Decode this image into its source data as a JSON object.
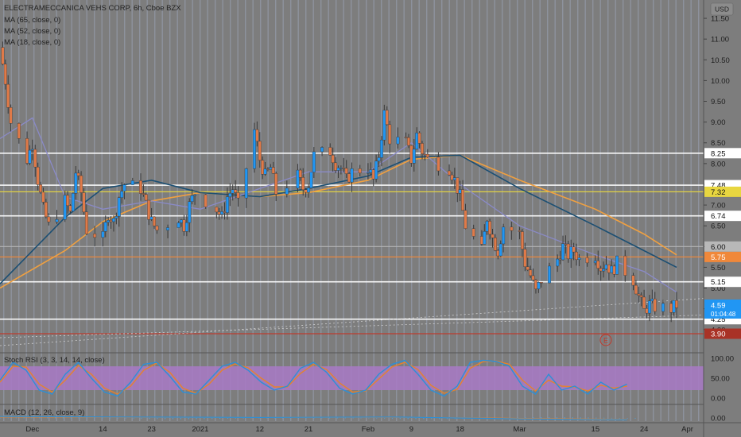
{
  "header": {
    "title": "ELECTRAMECCANICA VEHS CORP, 6h, Cboe BZX",
    "currency": "USD",
    "indicators": [
      "MA (65, close, 0)",
      "MA (52, close, 0)",
      "MA (18, close, 0)"
    ]
  },
  "rsi_panel": {
    "label": "Stoch RSI (3, 3, 14, 14, close)"
  },
  "macd_panel": {
    "label": "MACD (12, 26, close, 9)"
  },
  "earnings_marker": "E",
  "countdown": "01:04:48",
  "colors": {
    "up": "#2196f3",
    "down": "#e07a48",
    "ma65": "#f0a040",
    "ma52": "#1c4f73",
    "ma18": "#8a8ac8",
    "rsi_k": "#2d8fd6",
    "rsi_d": "#e5822d",
    "rsi_band": "#a879c6",
    "price_tag": "#2196f3"
  },
  "chart_data": {
    "type": "candlestick",
    "y_axis": {
      "min": 3.9,
      "max": 11.75,
      "ticks": [
        "11.50",
        "11.00",
        "10.50",
        "10.00",
        "9.50",
        "9.00",
        "8.50",
        "8.00",
        "7.50",
        "7.00",
        "6.50",
        "6.00",
        "5.50",
        "5.00",
        "4.50",
        "4.00"
      ]
    },
    "x_axis": {
      "labels": [
        {
          "label": "Dec",
          "date": "2020-12-01"
        },
        {
          "label": "14",
          "date": "2020-12-14"
        },
        {
          "label": "23",
          "date": "2020-12-23"
        },
        {
          "label": "2021",
          "date": "2021-01-01"
        },
        {
          "label": "12",
          "date": "2021-01-12"
        },
        {
          "label": "21",
          "date": "2021-01-21"
        },
        {
          "label": "Feb",
          "date": "2021-02-01"
        },
        {
          "label": "9",
          "date": "2021-02-09"
        },
        {
          "label": "18",
          "date": "2021-02-18"
        },
        {
          "label": "Mar",
          "date": "2021-03-01"
        },
        {
          "label": "15",
          "date": "2021-03-15"
        },
        {
          "label": "24",
          "date": "2021-03-24"
        },
        {
          "label": "Apr",
          "date": "2021-04-01"
        }
      ]
    },
    "horizontal_levels": [
      {
        "value": "8.25",
        "price": 8.25,
        "style": "white"
      },
      {
        "value": "7.48",
        "price": 7.48,
        "style": "white"
      },
      {
        "value": "7.32",
        "price": 7.32,
        "style": "yellow"
      },
      {
        "value": "6.74",
        "price": 6.74,
        "style": "white"
      },
      {
        "value": "6.00",
        "price": 6.0,
        "style": "grey"
      },
      {
        "value": "5.75",
        "price": 5.75,
        "style": "orange"
      },
      {
        "value": "5.15",
        "price": 5.15,
        "style": "white"
      },
      {
        "value": "4.25",
        "price": 4.25,
        "style": "white"
      },
      {
        "value": "3.90",
        "price": 3.9,
        "style": "red"
      }
    ],
    "last_price": {
      "value": "4.59",
      "price": 4.59
    },
    "close_path": [
      [
        "2020-11-25",
        10.8
      ],
      [
        "2020-11-26",
        10.0
      ],
      [
        "2020-11-27",
        9.0
      ],
      [
        "2020-11-30",
        8.1
      ],
      [
        "2020-12-01",
        8.5
      ],
      [
        "2020-12-02",
        7.6
      ],
      [
        "2020-12-03",
        6.9
      ],
      [
        "2020-12-04",
        6.5
      ],
      [
        "2020-12-07",
        7.1
      ],
      [
        "2020-12-08",
        6.8
      ],
      [
        "2020-12-09",
        7.8
      ],
      [
        "2020-12-10",
        7.3
      ],
      [
        "2020-12-11",
        6.4
      ],
      [
        "2020-12-14",
        6.2
      ],
      [
        "2020-12-15",
        6.8
      ],
      [
        "2020-12-16",
        6.6
      ],
      [
        "2020-12-17",
        7.2
      ],
      [
        "2020-12-18",
        7.5
      ],
      [
        "2020-12-21",
        7.4
      ],
      [
        "2020-12-22",
        7.0
      ],
      [
        "2020-12-23",
        6.6
      ],
      [
        "2020-12-24",
        6.4
      ],
      [
        "2020-12-28",
        6.7
      ],
      [
        "2020-12-29",
        6.5
      ],
      [
        "2020-12-30",
        7.0
      ],
      [
        "2020-12-31",
        7.3
      ],
      [
        "2021-01-04",
        6.9
      ],
      [
        "2021-01-05",
        6.7
      ],
      [
        "2021-01-06",
        7.2
      ],
      [
        "2021-01-07",
        7.4
      ],
      [
        "2021-01-08",
        7.0
      ],
      [
        "2021-01-11",
        8.8
      ],
      [
        "2021-01-12",
        8.1
      ],
      [
        "2021-01-13",
        7.7
      ],
      [
        "2021-01-14",
        7.9
      ],
      [
        "2021-01-15",
        7.3
      ],
      [
        "2021-01-19",
        7.7
      ],
      [
        "2021-01-20",
        7.4
      ],
      [
        "2021-01-21",
        7.5
      ],
      [
        "2021-01-22",
        8.2
      ],
      [
        "2021-01-25",
        8.3
      ],
      [
        "2021-01-26",
        8.0
      ],
      [
        "2021-01-27",
        7.9
      ],
      [
        "2021-01-28",
        7.6
      ],
      [
        "2021-01-29",
        7.8
      ],
      [
        "2021-02-01",
        7.9
      ],
      [
        "2021-02-02",
        7.6
      ],
      [
        "2021-02-03",
        8.2
      ],
      [
        "2021-02-04",
        9.2
      ],
      [
        "2021-02-05",
        8.6
      ],
      [
        "2021-02-08",
        8.5
      ],
      [
        "2021-02-09",
        8.1
      ],
      [
        "2021-02-10",
        8.7
      ],
      [
        "2021-02-11",
        8.3
      ],
      [
        "2021-02-12",
        8.1
      ],
      [
        "2021-02-16",
        7.9
      ],
      [
        "2021-02-17",
        7.6
      ],
      [
        "2021-02-18",
        7.2
      ],
      [
        "2021-02-19",
        6.5
      ],
      [
        "2021-02-22",
        5.9
      ],
      [
        "2021-02-23",
        6.7
      ],
      [
        "2021-02-24",
        6.2
      ],
      [
        "2021-02-25",
        5.9
      ],
      [
        "2021-02-26",
        6.5
      ],
      [
        "2021-03-01",
        6.3
      ],
      [
        "2021-03-02",
        5.6
      ],
      [
        "2021-03-03",
        5.3
      ],
      [
        "2021-03-04",
        4.9
      ],
      [
        "2021-03-05",
        5.2
      ],
      [
        "2021-03-08",
        5.7
      ],
      [
        "2021-03-09",
        6.0
      ],
      [
        "2021-03-10",
        5.8
      ],
      [
        "2021-03-11",
        5.9
      ],
      [
        "2021-03-12",
        5.7
      ],
      [
        "2021-03-15",
        5.8
      ],
      [
        "2021-03-16",
        5.5
      ],
      [
        "2021-03-17",
        5.6
      ],
      [
        "2021-03-18",
        5.4
      ],
      [
        "2021-03-19",
        5.6
      ],
      [
        "2021-03-22",
        5.2
      ],
      [
        "2021-03-23",
        4.8
      ],
      [
        "2021-03-24",
        4.45
      ],
      [
        "2021-03-25",
        4.6
      ],
      [
        "2021-03-26",
        4.55
      ],
      [
        "2021-03-29",
        4.5
      ],
      [
        "2021-03-30",
        4.59
      ]
    ],
    "ma65_path": [
      [
        "2020-11-25",
        5.0
      ],
      [
        "2020-12-07",
        5.9
      ],
      [
        "2020-12-14",
        6.6
      ],
      [
        "2020-12-23",
        7.1
      ],
      [
        "2021-01-01",
        7.3
      ],
      [
        "2021-01-12",
        7.2
      ],
      [
        "2021-01-21",
        7.3
      ],
      [
        "2021-02-01",
        7.6
      ],
      [
        "2021-02-09",
        8.1
      ],
      [
        "2021-02-18",
        8.2
      ],
      [
        "2021-03-01",
        7.6
      ],
      [
        "2021-03-15",
        6.9
      ],
      [
        "2021-03-24",
        6.3
      ],
      [
        "2021-03-30",
        5.8
      ]
    ],
    "ma52_path": [
      [
        "2020-11-25",
        5.1
      ],
      [
        "2020-12-07",
        6.7
      ],
      [
        "2020-12-14",
        7.4
      ],
      [
        "2020-12-23",
        7.6
      ],
      [
        "2021-01-01",
        7.3
      ],
      [
        "2021-01-12",
        7.2
      ],
      [
        "2021-01-21",
        7.4
      ],
      [
        "2021-02-01",
        7.7
      ],
      [
        "2021-02-09",
        8.15
      ],
      [
        "2021-02-18",
        8.2
      ],
      [
        "2021-03-01",
        7.4
      ],
      [
        "2021-03-15",
        6.5
      ],
      [
        "2021-03-24",
        5.9
      ],
      [
        "2021-03-30",
        5.5
      ]
    ],
    "ma18_path": [
      [
        "2020-11-25",
        8.6
      ],
      [
        "2020-12-01",
        9.1
      ],
      [
        "2020-12-07",
        7.2
      ],
      [
        "2020-12-14",
        6.9
      ],
      [
        "2020-12-23",
        7.1
      ],
      [
        "2021-01-01",
        6.9
      ],
      [
        "2021-01-12",
        7.4
      ],
      [
        "2021-01-21",
        7.8
      ],
      [
        "2021-02-01",
        7.8
      ],
      [
        "2021-02-09",
        8.5
      ],
      [
        "2021-02-18",
        7.5
      ],
      [
        "2021-03-01",
        6.5
      ],
      [
        "2021-03-15",
        5.8
      ],
      [
        "2021-03-24",
        5.4
      ],
      [
        "2021-03-30",
        4.9
      ]
    ],
    "stoch_rsi": {
      "y_axis": {
        "ticks": [
          "100.00",
          "50.00",
          "0.00"
        ],
        "min": 0,
        "max": 100
      },
      "band": [
        20,
        80
      ],
      "k_path": [
        [
          0,
          45
        ],
        [
          2,
          90
        ],
        [
          4,
          70
        ],
        [
          6,
          20
        ],
        [
          8,
          10
        ],
        [
          10,
          60
        ],
        [
          12,
          90
        ],
        [
          14,
          50
        ],
        [
          16,
          15
        ],
        [
          18,
          5
        ],
        [
          20,
          40
        ],
        [
          22,
          85
        ],
        [
          24,
          90
        ],
        [
          26,
          55
        ],
        [
          28,
          15
        ],
        [
          30,
          10
        ],
        [
          32,
          45
        ],
        [
          34,
          80
        ],
        [
          36,
          90
        ],
        [
          38,
          70
        ],
        [
          40,
          40
        ],
        [
          42,
          20
        ],
        [
          44,
          30
        ],
        [
          46,
          75
        ],
        [
          48,
          90
        ],
        [
          50,
          65
        ],
        [
          52,
          25
        ],
        [
          54,
          10
        ],
        [
          56,
          20
        ],
        [
          58,
          60
        ],
        [
          60,
          85
        ],
        [
          62,
          95
        ],
        [
          64,
          60
        ],
        [
          66,
          20
        ],
        [
          68,
          5
        ],
        [
          70,
          30
        ],
        [
          72,
          90
        ],
        [
          74,
          95
        ],
        [
          76,
          92
        ],
        [
          78,
          80
        ],
        [
          80,
          30
        ],
        [
          82,
          10
        ],
        [
          84,
          60
        ],
        [
          86,
          20
        ],
        [
          88,
          30
        ],
        [
          90,
          10
        ],
        [
          92,
          40
        ],
        [
          94,
          20
        ],
        [
          96,
          35
        ]
      ],
      "d_path": [
        [
          0,
          40
        ],
        [
          2,
          80
        ],
        [
          4,
          78
        ],
        [
          6,
          35
        ],
        [
          8,
          15
        ],
        [
          10,
          45
        ],
        [
          12,
          82
        ],
        [
          14,
          60
        ],
        [
          16,
          25
        ],
        [
          18,
          10
        ],
        [
          20,
          30
        ],
        [
          22,
          70
        ],
        [
          24,
          88
        ],
        [
          26,
          65
        ],
        [
          28,
          25
        ],
        [
          30,
          12
        ],
        [
          32,
          35
        ],
        [
          34,
          70
        ],
        [
          36,
          86
        ],
        [
          38,
          76
        ],
        [
          40,
          50
        ],
        [
          42,
          28
        ],
        [
          44,
          28
        ],
        [
          46,
          62
        ],
        [
          48,
          85
        ],
        [
          50,
          72
        ],
        [
          52,
          38
        ],
        [
          54,
          15
        ],
        [
          56,
          18
        ],
        [
          58,
          48
        ],
        [
          60,
          78
        ],
        [
          62,
          90
        ],
        [
          64,
          72
        ],
        [
          66,
          32
        ],
        [
          68,
          12
        ],
        [
          70,
          22
        ],
        [
          72,
          75
        ],
        [
          74,
          92
        ],
        [
          76,
          93
        ],
        [
          78,
          85
        ],
        [
          80,
          45
        ],
        [
          82,
          18
        ],
        [
          84,
          45
        ],
        [
          86,
          30
        ],
        [
          88,
          28
        ],
        [
          90,
          18
        ],
        [
          92,
          32
        ],
        [
          94,
          25
        ],
        [
          96,
          30
        ]
      ]
    },
    "macd": {
      "y_axis": {
        "ticks": [
          "0.00"
        ],
        "min": -0.6,
        "max": 0.6
      },
      "macd_path": [
        [
          0,
          0.15
        ],
        [
          20,
          0.1
        ],
        [
          40,
          0.05
        ],
        [
          60,
          0.1
        ],
        [
          80,
          -0.1
        ],
        [
          96,
          -0.2
        ]
      ],
      "signal_path": [
        [
          0,
          0.1
        ],
        [
          20,
          0.08
        ],
        [
          40,
          0.06
        ],
        [
          60,
          0.08
        ],
        [
          80,
          -0.05
        ],
        [
          96,
          -0.15
        ]
      ]
    }
  }
}
